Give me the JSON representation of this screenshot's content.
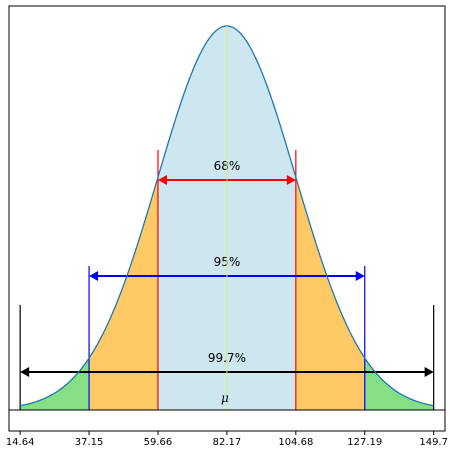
{
  "chart_data": {
    "type": "area",
    "title": "",
    "xlabel": "",
    "ylabel": "",
    "mean": 82.17,
    "std": 22.51,
    "xlim": [
      11.0,
      153.4
    ],
    "grid": false,
    "legend": "none",
    "x_ticks": [
      14.64,
      37.15,
      59.66,
      82.17,
      104.68,
      127.19,
      149.7
    ],
    "x_tick_labels": [
      "14.64",
      "37.15",
      "59.66",
      "82.17",
      "104.68",
      "127.19",
      "149.7"
    ],
    "mean_label": "μ",
    "regions": [
      {
        "from": 59.66,
        "to": 104.68,
        "color": "#cde6f0"
      },
      {
        "from": 37.15,
        "to": 59.66,
        "color": "#ffc966"
      },
      {
        "from": 104.68,
        "to": 127.19,
        "color": "#ffc966"
      },
      {
        "from": 14.64,
        "to": 37.15,
        "color": "#85e085"
      },
      {
        "from": 127.19,
        "to": 149.7,
        "color": "#85e085"
      }
    ],
    "ranges": [
      {
        "label": "68%",
        "from": 59.66,
        "to": 104.68,
        "color": "#ff0000"
      },
      {
        "label": "95%",
        "from": 37.15,
        "to": 127.19,
        "color": "#0000ff"
      },
      {
        "label": "99.7%",
        "from": 14.64,
        "to": 149.7,
        "color": "#000000"
      }
    ],
    "curve_color": "#1f77b4",
    "mean_line_color": "#d4f07a"
  }
}
